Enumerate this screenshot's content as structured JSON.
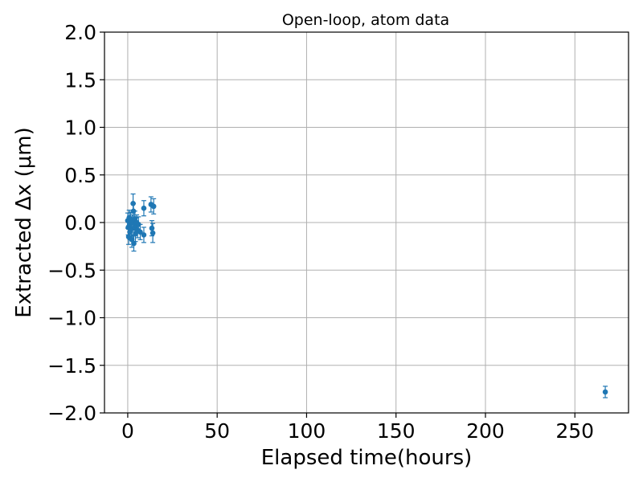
{
  "chart_data": {
    "type": "scatter",
    "title": "Open-loop, atom data",
    "xlabel": "Elapsed time(hours)",
    "ylabel": "Extracted Δx (μm)",
    "xlim": [
      -13,
      280
    ],
    "ylim": [
      -2.0,
      2.0
    ],
    "xticks": [
      0,
      50,
      100,
      150,
      200,
      250
    ],
    "yticks": [
      2.0,
      1.5,
      1.0,
      0.5,
      0.0,
      -0.5,
      -1.0,
      -1.5,
      -2.0
    ],
    "xtick_labels": [
      "0",
      "50",
      "100",
      "150",
      "200",
      "250"
    ],
    "ytick_labels": [
      "2.0",
      "1.5",
      "1.0",
      "0.5",
      "0.0",
      "−0.5",
      "−1.0",
      "−1.5",
      "−2.0"
    ],
    "grid": true,
    "color": "#1f77b4",
    "series": [
      {
        "points": [
          {
            "x": 0.0,
            "y": 0.02,
            "err": 0.08
          },
          {
            "x": 0.3,
            "y": -0.05,
            "err": 0.08
          },
          {
            "x": 0.5,
            "y": -0.15,
            "err": 0.08
          },
          {
            "x": 0.8,
            "y": 0.05,
            "err": 0.08
          },
          {
            "x": 1.0,
            "y": -0.02,
            "err": 0.08
          },
          {
            "x": 1.3,
            "y": -0.1,
            "err": 0.08
          },
          {
            "x": 1.6,
            "y": 0.03,
            "err": 0.08
          },
          {
            "x": 2.0,
            "y": -0.07,
            "err": 0.08
          },
          {
            "x": 2.3,
            "y": -0.18,
            "err": 0.08
          },
          {
            "x": 2.6,
            "y": 0.0,
            "err": 0.08
          },
          {
            "x": 3.0,
            "y": 0.2,
            "err": 0.1
          },
          {
            "x": 3.2,
            "y": 0.12,
            "err": 0.08
          },
          {
            "x": 3.4,
            "y": -0.22,
            "err": 0.08
          },
          {
            "x": 3.7,
            "y": -0.05,
            "err": 0.08
          },
          {
            "x": 4.0,
            "y": 0.04,
            "err": 0.08
          },
          {
            "x": 4.3,
            "y": -0.12,
            "err": 0.08
          },
          {
            "x": 4.7,
            "y": -0.03,
            "err": 0.08
          },
          {
            "x": 5.0,
            "y": 0.0,
            "err": 0.08
          },
          {
            "x": 5.5,
            "y": -0.08,
            "err": 0.08
          },
          {
            "x": 6.0,
            "y": -0.02,
            "err": 0.08
          },
          {
            "x": 7.0,
            "y": -0.1,
            "err": 0.08
          },
          {
            "x": 9.0,
            "y": -0.13,
            "err": 0.08
          },
          {
            "x": 9.0,
            "y": 0.15,
            "err": 0.08
          },
          {
            "x": 13.0,
            "y": 0.19,
            "err": 0.08
          },
          {
            "x": 13.5,
            "y": -0.06,
            "err": 0.08
          },
          {
            "x": 14.0,
            "y": -0.11,
            "err": 0.1
          },
          {
            "x": 14.5,
            "y": 0.17,
            "err": 0.08
          },
          {
            "x": 267.0,
            "y": -1.78,
            "err": 0.06
          }
        ]
      }
    ]
  }
}
